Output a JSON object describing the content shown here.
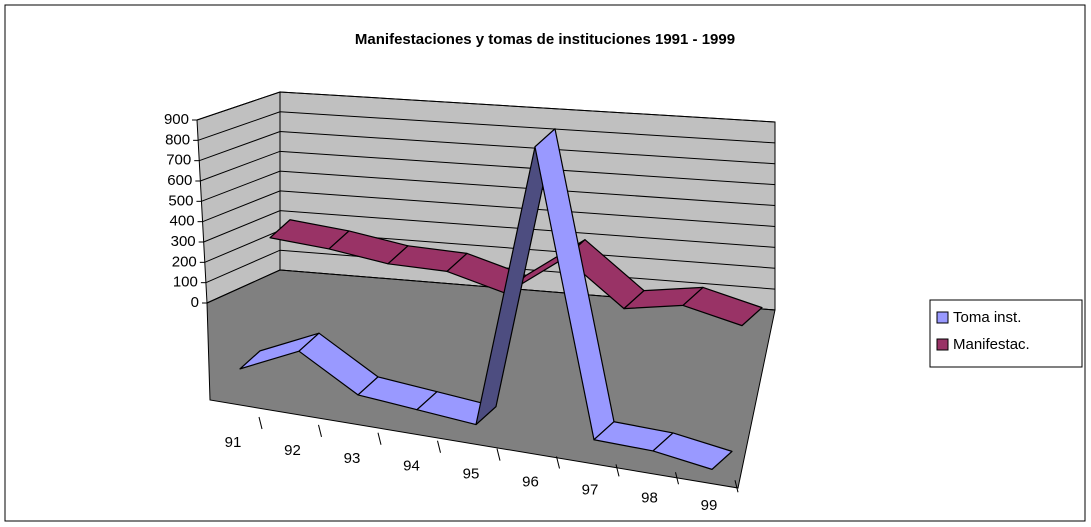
{
  "chart_data": {
    "type": "line3d",
    "title": "Manifestaciones y tomas de instituciones 1991 - 1999",
    "categories": [
      "91",
      "92",
      "93",
      "94",
      "95",
      "96",
      "97",
      "98",
      "99"
    ],
    "series": [
      {
        "name": "Toma inst.",
        "color": "#9999ff",
        "values": [
          30,
          110,
          20,
          10,
          0,
          800,
          20,
          20,
          0
        ]
      },
      {
        "name": "Manifestac.",
        "color": "#993366",
        "values": [
          130,
          130,
          120,
          130,
          100,
          230,
          120,
          160,
          135
        ]
      }
    ],
    "ylim": [
      0,
      900
    ],
    "yticks": [
      0,
      100,
      200,
      300,
      400,
      500,
      600,
      700,
      800,
      900
    ],
    "grid": true,
    "legend": "right"
  }
}
